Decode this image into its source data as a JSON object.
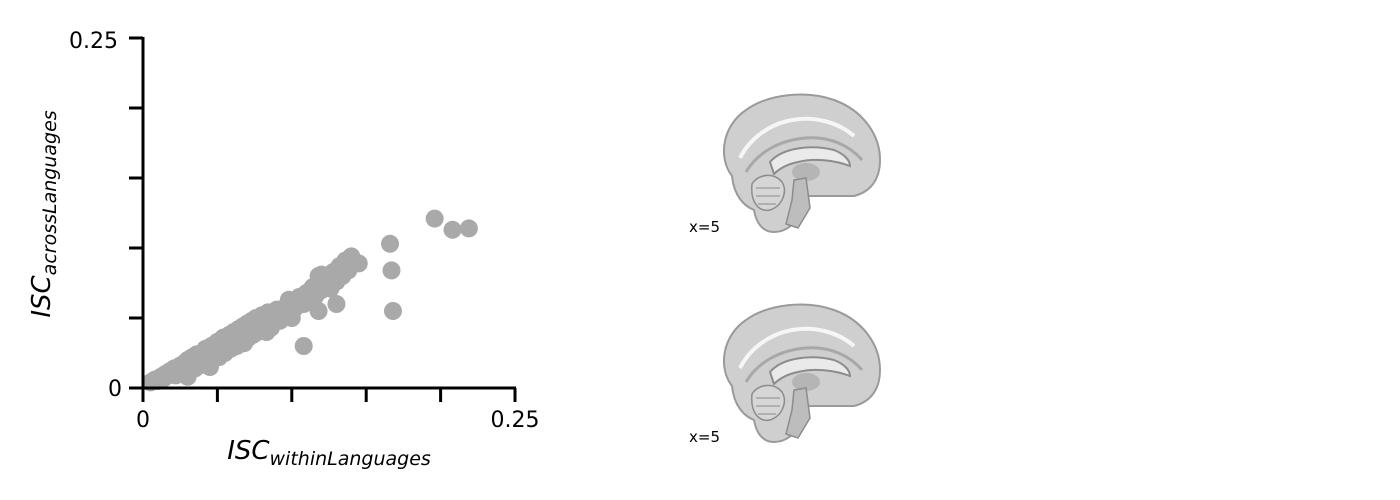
{
  "chart_data": {
    "type": "scatter",
    "title": "",
    "xlabel": {
      "main": "ISC",
      "sub": "withinLanguages"
    },
    "ylabel": {
      "main": "ISC",
      "sub": "acrossLanguages"
    },
    "xlim": [
      0,
      0.25
    ],
    "ylim": [
      0,
      0.25
    ],
    "x_tick_labels": [
      "0",
      "0.25"
    ],
    "y_tick_labels": [
      "0",
      "0.25"
    ],
    "x_ticks": [
      0,
      0.05,
      0.1,
      0.15,
      0.2,
      0.25
    ],
    "y_ticks": [
      0,
      0.05,
      0.1,
      0.15,
      0.2,
      0.25
    ],
    "grid": false,
    "marker_color": "#a9a9a9",
    "series": [
      {
        "points": [
          [
            0.005,
            0.004
          ],
          [
            0.008,
            0.006
          ],
          [
            0.01,
            0.005
          ],
          [
            0.012,
            0.008
          ],
          [
            0.014,
            0.007
          ],
          [
            0.015,
            0.01
          ],
          [
            0.017,
            0.009
          ],
          [
            0.018,
            0.012
          ],
          [
            0.02,
            0.011
          ],
          [
            0.021,
            0.014
          ],
          [
            0.022,
            0.009
          ],
          [
            0.024,
            0.013
          ],
          [
            0.025,
            0.016
          ],
          [
            0.026,
            0.011
          ],
          [
            0.027,
            0.015
          ],
          [
            0.028,
            0.018
          ],
          [
            0.029,
            0.012
          ],
          [
            0.03,
            0.02
          ],
          [
            0.031,
            0.016
          ],
          [
            0.032,
            0.013
          ],
          [
            0.033,
            0.022
          ],
          [
            0.034,
            0.018
          ],
          [
            0.035,
            0.014
          ],
          [
            0.036,
            0.024
          ],
          [
            0.037,
            0.019
          ],
          [
            0.038,
            0.016
          ],
          [
            0.039,
            0.021
          ],
          [
            0.04,
            0.025
          ],
          [
            0.041,
            0.017
          ],
          [
            0.042,
            0.028
          ],
          [
            0.043,
            0.022
          ],
          [
            0.044,
            0.019
          ],
          [
            0.045,
            0.026
          ],
          [
            0.046,
            0.03
          ],
          [
            0.047,
            0.021
          ],
          [
            0.048,
            0.024
          ],
          [
            0.049,
            0.028
          ],
          [
            0.05,
            0.033
          ],
          [
            0.051,
            0.022
          ],
          [
            0.052,
            0.027
          ],
          [
            0.053,
            0.031
          ],
          [
            0.054,
            0.036
          ],
          [
            0.055,
            0.025
          ],
          [
            0.056,
            0.029
          ],
          [
            0.057,
            0.034
          ],
          [
            0.058,
            0.038
          ],
          [
            0.059,
            0.028
          ],
          [
            0.06,
            0.032
          ],
          [
            0.061,
            0.04
          ],
          [
            0.062,
            0.036
          ],
          [
            0.063,
            0.03
          ],
          [
            0.064,
            0.042
          ],
          [
            0.065,
            0.034
          ],
          [
            0.066,
            0.038
          ],
          [
            0.067,
            0.044
          ],
          [
            0.068,
            0.032
          ],
          [
            0.069,
            0.04
          ],
          [
            0.07,
            0.046
          ],
          [
            0.071,
            0.036
          ],
          [
            0.072,
            0.042
          ],
          [
            0.073,
            0.048
          ],
          [
            0.074,
            0.038
          ],
          [
            0.075,
            0.045
          ],
          [
            0.076,
            0.05
          ],
          [
            0.077,
            0.04
          ],
          [
            0.078,
            0.047
          ],
          [
            0.079,
            0.043
          ],
          [
            0.08,
            0.052
          ],
          [
            0.081,
            0.045
          ],
          [
            0.082,
            0.049
          ],
          [
            0.083,
            0.04
          ],
          [
            0.084,
            0.054
          ],
          [
            0.085,
            0.047
          ],
          [
            0.086,
            0.043
          ],
          [
            0.088,
            0.05
          ],
          [
            0.09,
            0.056
          ],
          [
            0.092,
            0.048
          ],
          [
            0.094,
            0.052
          ],
          [
            0.096,
            0.058
          ],
          [
            0.1,
            0.05
          ],
          [
            0.098,
            0.063
          ],
          [
            0.102,
            0.057
          ],
          [
            0.105,
            0.065
          ],
          [
            0.108,
            0.06
          ],
          [
            0.11,
            0.068
          ],
          [
            0.112,
            0.064
          ],
          [
            0.114,
            0.072
          ],
          [
            0.116,
            0.066
          ],
          [
            0.118,
            0.055
          ],
          [
            0.12,
            0.07
          ],
          [
            0.122,
            0.074
          ],
          [
            0.124,
            0.079
          ],
          [
            0.126,
            0.071
          ],
          [
            0.128,
            0.083
          ],
          [
            0.13,
            0.076
          ],
          [
            0.132,
            0.087
          ],
          [
            0.134,
            0.08
          ],
          [
            0.136,
            0.091
          ],
          [
            0.138,
            0.084
          ],
          [
            0.14,
            0.094
          ],
          [
            0.145,
            0.089
          ],
          [
            0.12,
            0.081
          ],
          [
            0.118,
            0.08
          ],
          [
            0.13,
            0.06
          ],
          [
            0.108,
            0.03
          ],
          [
            0.066,
            0.042
          ],
          [
            0.045,
            0.015
          ],
          [
            0.03,
            0.008
          ],
          [
            0.166,
            0.103
          ],
          [
            0.167,
            0.084
          ],
          [
            0.168,
            0.055
          ],
          [
            0.196,
            0.121
          ],
          [
            0.208,
            0.113
          ],
          [
            0.219,
            0.114
          ]
        ]
      }
    ]
  },
  "brain_panels": [
    {
      "label": "x=5"
    },
    {
      "label": "x=5"
    }
  ]
}
